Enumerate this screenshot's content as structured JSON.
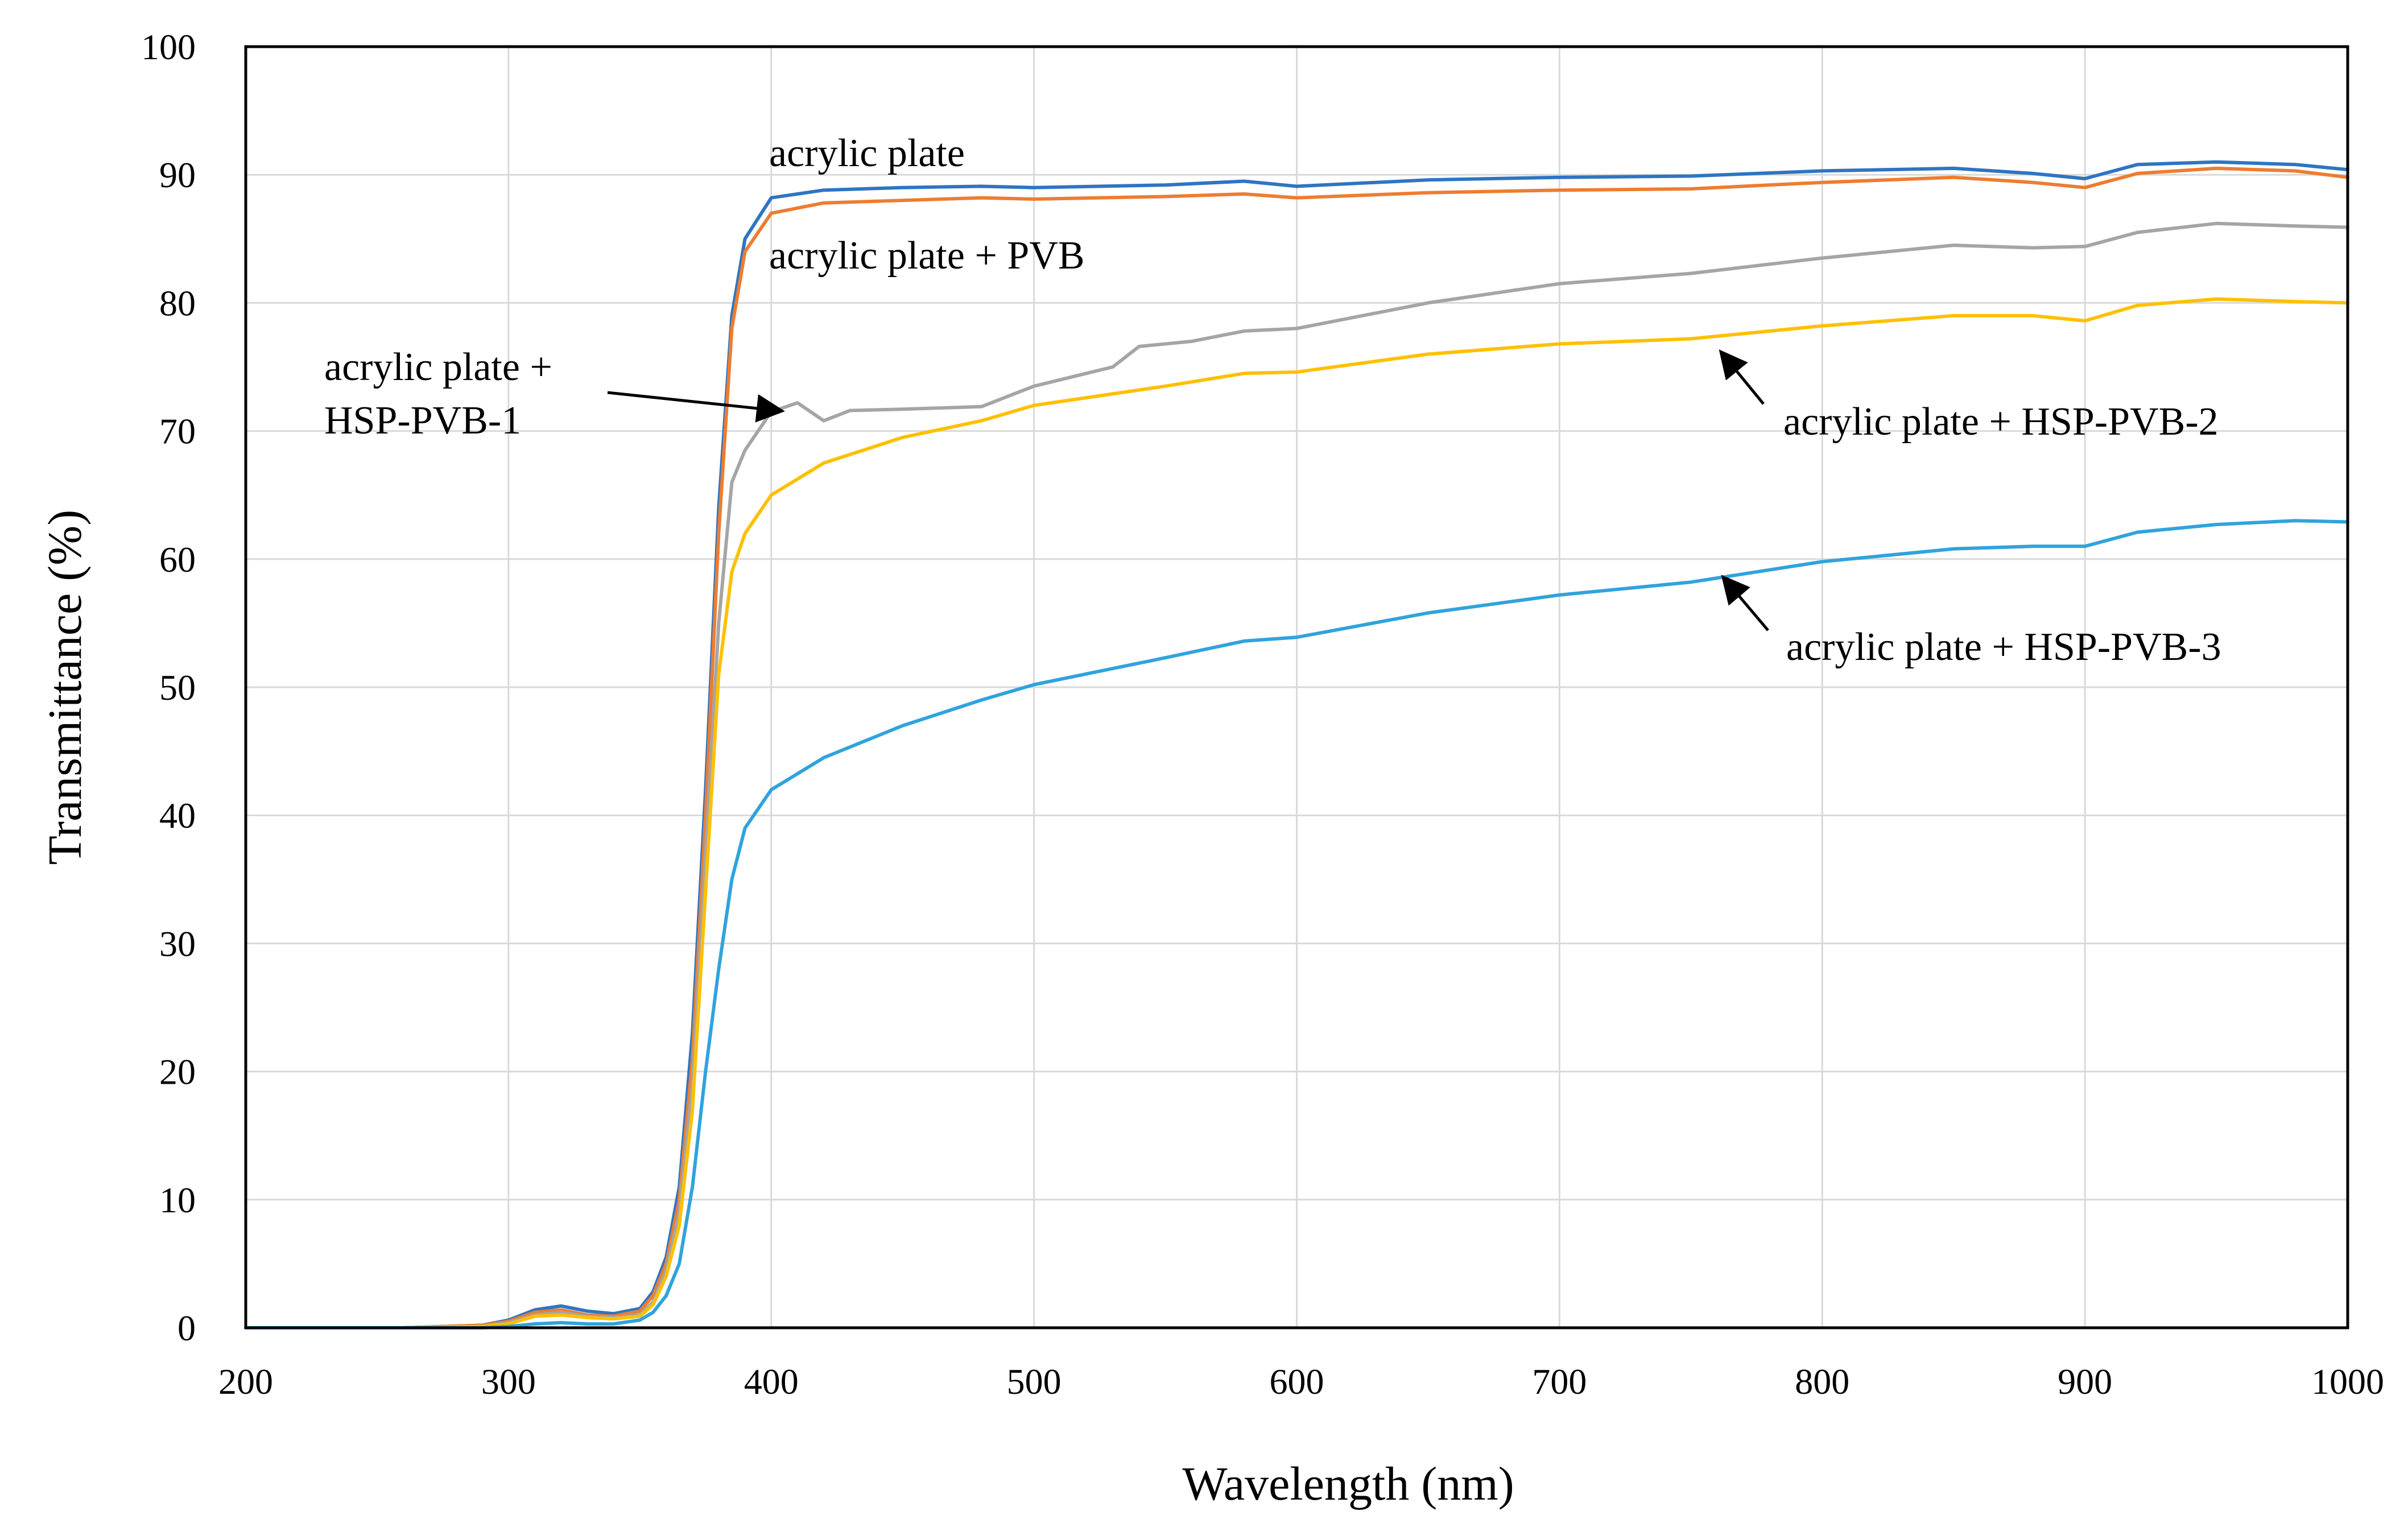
{
  "chart_data": {
    "type": "line",
    "title": "",
    "xlabel": "Wavelength (nm)",
    "ylabel": "Transmittance (%)",
    "xlim": [
      200,
      1000
    ],
    "ylim": [
      0,
      100
    ],
    "xticks": [
      200,
      300,
      400,
      500,
      600,
      700,
      800,
      900,
      1000
    ],
    "yticks": [
      0,
      10,
      20,
      30,
      40,
      50,
      60,
      70,
      80,
      90,
      100
    ],
    "xtick_labels": [
      "200",
      "300",
      "400",
      "500",
      "600",
      "700",
      "800",
      "900",
      "1000"
    ],
    "ytick_labels": [
      "0",
      "10",
      "20",
      "30",
      "40",
      "50",
      "60",
      "70",
      "80",
      "90",
      "100"
    ],
    "grid": true,
    "legend": "none",
    "series": [
      {
        "name": "acrylic plate",
        "color": "#2e75c2",
        "x": [
          200,
          260,
          290,
          300,
          310,
          320,
          330,
          340,
          350,
          355,
          360,
          365,
          370,
          375,
          380,
          385,
          390,
          400,
          420,
          450,
          480,
          500,
          550,
          580,
          600,
          650,
          700,
          750,
          800,
          850,
          880,
          900,
          920,
          950,
          980,
          1000
        ],
        "y": [
          0,
          0,
          0.2,
          0.6,
          1.4,
          1.7,
          1.3,
          1.1,
          1.5,
          2.8,
          5.5,
          11,
          23,
          42,
          64,
          79,
          85,
          88.2,
          88.8,
          89.0,
          89.1,
          89.0,
          89.2,
          89.5,
          89.1,
          89.6,
          89.8,
          89.9,
          90.3,
          90.5,
          90.1,
          89.7,
          90.8,
          91.0,
          90.8,
          90.4
        ]
      },
      {
        "name": "acrylic plate + PVB",
        "color": "#ed7d31",
        "x": [
          200,
          260,
          290,
          300,
          310,
          320,
          330,
          340,
          350,
          355,
          360,
          365,
          370,
          375,
          380,
          385,
          390,
          400,
          420,
          450,
          480,
          500,
          550,
          580,
          600,
          650,
          700,
          750,
          800,
          850,
          880,
          900,
          920,
          950,
          980,
          1000
        ],
        "y": [
          0,
          0,
          0.2,
          0.5,
          1.2,
          1.4,
          1.0,
          0.9,
          1.3,
          2.5,
          5.0,
          10,
          21,
          40,
          62,
          78,
          84,
          87.0,
          87.8,
          88.0,
          88.2,
          88.1,
          88.3,
          88.5,
          88.2,
          88.6,
          88.8,
          88.9,
          89.4,
          89.8,
          89.4,
          89.0,
          90.1,
          90.5,
          90.3,
          89.8
        ]
      },
      {
        "name": "acrylic plate + HSP-PVB-1",
        "color": "#a5a5a5",
        "x": [
          200,
          260,
          290,
          300,
          310,
          320,
          330,
          340,
          350,
          355,
          360,
          365,
          370,
          375,
          380,
          385,
          390,
          400,
          410,
          420,
          430,
          450,
          480,
          500,
          530,
          540,
          560,
          580,
          600,
          650,
          700,
          750,
          800,
          850,
          880,
          900,
          920,
          950,
          980,
          1000
        ],
        "y": [
          0,
          0,
          0.1,
          0.4,
          1.0,
          1.2,
          0.9,
          0.8,
          1.0,
          2.0,
          4.5,
          9,
          19,
          37,
          55,
          66,
          68.5,
          71.5,
          72.2,
          70.8,
          71.6,
          71.7,
          71.9,
          73.5,
          75.0,
          76.6,
          77.0,
          77.8,
          78.0,
          80.0,
          81.5,
          82.3,
          83.5,
          84.5,
          84.3,
          84.4,
          85.5,
          86.2,
          86.0,
          85.9
        ]
      },
      {
        "name": "acrylic plate + HSP-PVB-2",
        "color": "#ffc000",
        "x": [
          200,
          260,
          290,
          300,
          310,
          320,
          330,
          340,
          350,
          355,
          360,
          365,
          370,
          375,
          380,
          385,
          390,
          400,
          420,
          450,
          480,
          500,
          550,
          580,
          600,
          650,
          700,
          750,
          800,
          850,
          880,
          900,
          920,
          950,
          980,
          1000
        ],
        "y": [
          0,
          0,
          0.1,
          0.3,
          0.9,
          1.0,
          0.8,
          0.7,
          0.9,
          1.8,
          4.0,
          8,
          17,
          34,
          51,
          59,
          62,
          65,
          67.5,
          69.5,
          70.8,
          72.0,
          73.5,
          74.5,
          74.6,
          76.0,
          76.8,
          77.2,
          78.2,
          79.0,
          79.0,
          78.6,
          79.8,
          80.3,
          80.1,
          80.0
        ]
      },
      {
        "name": "acrylic plate + HSP-PVB-3",
        "color": "#30a3dd",
        "x": [
          200,
          260,
          290,
          300,
          310,
          320,
          330,
          340,
          350,
          355,
          360,
          365,
          370,
          375,
          380,
          385,
          390,
          400,
          420,
          450,
          480,
          500,
          550,
          580,
          600,
          650,
          700,
          750,
          800,
          850,
          880,
          900,
          920,
          950,
          980,
          1000
        ],
        "y": [
          0,
          0,
          0,
          0.1,
          0.3,
          0.4,
          0.3,
          0.3,
          0.6,
          1.2,
          2.5,
          5,
          11,
          20,
          28,
          35,
          39,
          42,
          44.5,
          47,
          49,
          50.2,
          52.3,
          53.6,
          53.9,
          55.8,
          57.2,
          58.2,
          59.8,
          60.8,
          61.0,
          61.0,
          62.1,
          62.7,
          63.0,
          62.9
        ]
      }
    ],
    "annotations": [
      {
        "line1": "acrylic plate",
        "line2": "",
        "series": "acrylic plate"
      },
      {
        "line1": "acrylic plate + PVB",
        "line2": "",
        "series": "acrylic plate + PVB"
      },
      {
        "line1": "acrylic plate +",
        "line2": "HSP-PVB-1",
        "series": "acrylic plate + HSP-PVB-1",
        "arrow_to": [
          405,
          71.7
        ]
      },
      {
        "line1": "acrylic plate + HSP-PVB-2",
        "line2": "",
        "series": "acrylic plate + HSP-PVB-2",
        "arrow_to": [
          762,
          77.7
        ]
      },
      {
        "line1": "acrylic plate + HSP-PVB-3",
        "line2": "",
        "series": "acrylic plate + HSP-PVB-3",
        "arrow_to": [
          762,
          58.8
        ]
      }
    ]
  }
}
